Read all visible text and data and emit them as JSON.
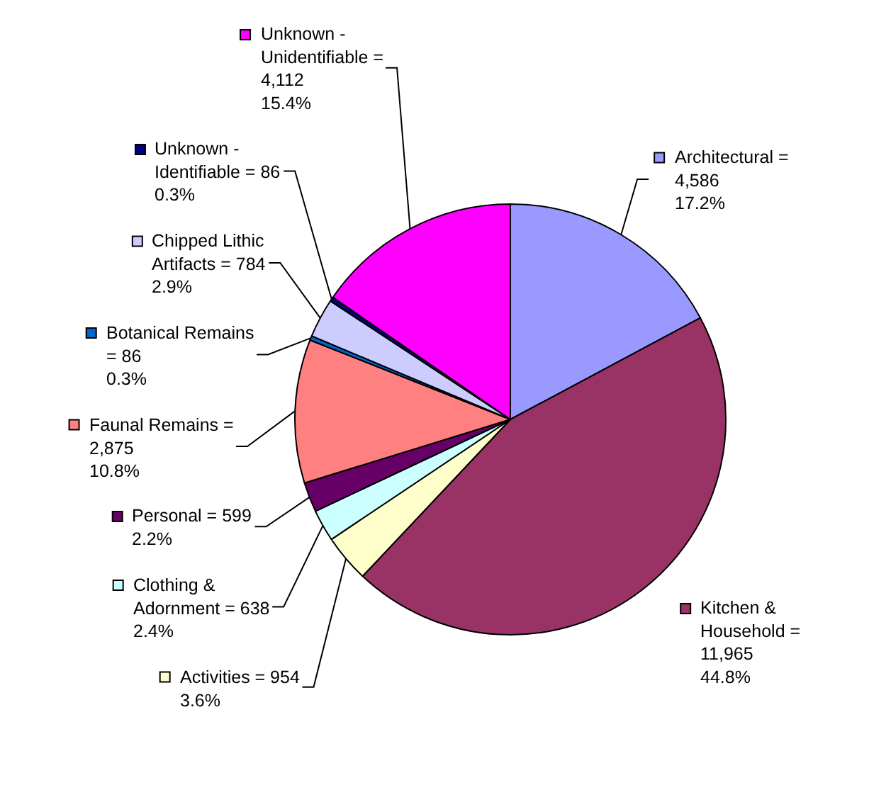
{
  "chart_data": {
    "type": "pie",
    "legend": "left",
    "categories": [
      "Architectural",
      "Kitchen & Household",
      "Activities",
      "Clothing & Adornment",
      "Personal",
      "Faunal Remains",
      "Botanical Remains",
      "Chipped Lithic Artifacts",
      "Unknown - Identifiable",
      "Unknown - Unidentifiable"
    ],
    "values": [
      4586,
      11965,
      954,
      638,
      599,
      2875,
      86,
      784,
      86,
      4112
    ],
    "colors": [
      "#9999ff",
      "#993366",
      "#ffffcc",
      "#ccffff",
      "#660066",
      "#ff8080",
      "#0066cc",
      "#ccccff",
      "#000080",
      "#ff00ff"
    ],
    "value_labels": [
      "= 4,586 17.2%",
      "= 11,965 44.8%",
      "= 954 3.6%",
      "= 638 2.4%",
      "= 599 2.2%",
      "= 2,875 10.8%",
      "= 86 0.3%",
      "= 784 2.9%",
      "= 86 0.3%",
      "= 4,112 15.4%"
    ]
  }
}
